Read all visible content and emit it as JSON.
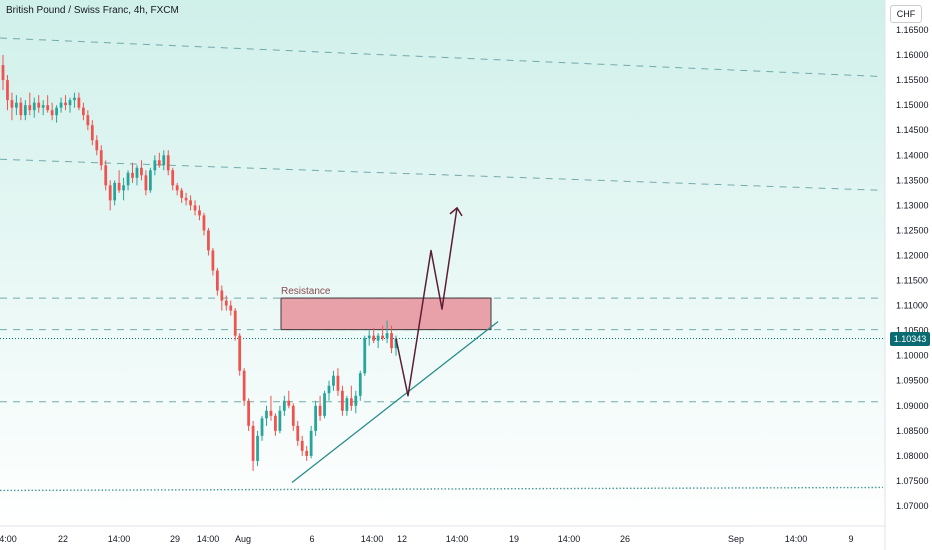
{
  "header": {
    "symbol_title": "British Pound / Swiss Franc, 4h, FXCM",
    "currency": "CHF",
    "last_price_label": "1.10343"
  },
  "chart_data": {
    "type": "candlestick",
    "title": "British Pound / Swiss Franc, 4h, FXCM",
    "y_axis": {
      "ticks": [
        "1.16500",
        "1.16000",
        "1.15500",
        "1.15000",
        "1.14500",
        "1.14000",
        "1.13500",
        "1.13000",
        "1.12500",
        "1.12000",
        "1.11500",
        "1.11000",
        "1.10500",
        "1.10000",
        "1.09500",
        "1.09000",
        "1.08500",
        "1.08000",
        "1.07500",
        "1.07000"
      ],
      "range": [
        1.0665,
        1.1695
      ]
    },
    "x_axis": {
      "ticks": [
        "4:00",
        "22",
        "14:00",
        "29",
        "14:00",
        "Aug",
        "6",
        "14:00",
        "12",
        "14:00",
        "19",
        "14:00",
        "26",
        "Sep",
        "14:00",
        "9"
      ]
    },
    "last_price": 1.10343,
    "annotations": {
      "resistance_label": "Resistance",
      "resistance_zone": [
        1.1052,
        1.1115
      ],
      "horizontal_levels": [
        1.0908,
        1.1052,
        1.1115
      ],
      "channel_lines": [
        {
          "from_price": 1.1634,
          "to_price": 1.1557
        },
        {
          "from_price": 1.1392,
          "to_price": 1.133
        },
        {
          "from_price": 1.0731,
          "to_price": 1.0737
        }
      ],
      "support_trendline": {
        "from_price": 1.0747,
        "to_price": 1.1068
      },
      "projected_path": [
        1.092,
        1.121,
        1.1093,
        1.1295
      ]
    },
    "candles": [
      [
        1.158,
        1.16,
        1.153,
        1.155
      ],
      [
        1.155,
        1.156,
        1.149,
        1.151
      ],
      [
        1.151,
        1.1525,
        1.147,
        1.1495
      ],
      [
        1.1495,
        1.152,
        1.148,
        1.1505
      ],
      [
        1.1505,
        1.1515,
        1.147,
        1.148
      ],
      [
        1.148,
        1.151,
        1.147,
        1.15
      ],
      [
        1.15,
        1.1525,
        1.148,
        1.149
      ],
      [
        1.149,
        1.1515,
        1.1475,
        1.1505
      ],
      [
        1.1505,
        1.152,
        1.1485,
        1.1495
      ],
      [
        1.1495,
        1.151,
        1.148,
        1.15
      ],
      [
        1.15,
        1.152,
        1.1485,
        1.149
      ],
      [
        1.149,
        1.1505,
        1.147,
        1.148
      ],
      [
        1.148,
        1.15,
        1.1465,
        1.1495
      ],
      [
        1.1495,
        1.1515,
        1.1485,
        1.1505
      ],
      [
        1.1505,
        1.152,
        1.149,
        1.15
      ],
      [
        1.15,
        1.1515,
        1.1485,
        1.151
      ],
      [
        1.151,
        1.1525,
        1.1495,
        1.1515
      ],
      [
        1.1515,
        1.1525,
        1.149,
        1.1495
      ],
      [
        1.1495,
        1.1505,
        1.147,
        1.148
      ],
      [
        1.148,
        1.149,
        1.145,
        1.146
      ],
      [
        1.146,
        1.147,
        1.142,
        1.143
      ],
      [
        1.143,
        1.144,
        1.14,
        1.141
      ],
      [
        1.141,
        1.142,
        1.137,
        1.138
      ],
      [
        1.138,
        1.139,
        1.133,
        1.134
      ],
      [
        1.134,
        1.135,
        1.129,
        1.131
      ],
      [
        1.131,
        1.135,
        1.13,
        1.1345
      ],
      [
        1.1345,
        1.137,
        1.1325,
        1.133
      ],
      [
        1.133,
        1.1355,
        1.131,
        1.134
      ],
      [
        1.134,
        1.137,
        1.133,
        1.1365
      ],
      [
        1.1365,
        1.1385,
        1.1345,
        1.1355
      ],
      [
        1.1355,
        1.138,
        1.134,
        1.1375
      ],
      [
        1.1375,
        1.139,
        1.135,
        1.136
      ],
      [
        1.136,
        1.137,
        1.132,
        1.133
      ],
      [
        1.133,
        1.1375,
        1.1325,
        1.137
      ],
      [
        1.137,
        1.14,
        1.136,
        1.139
      ],
      [
        1.139,
        1.1405,
        1.1375,
        1.138
      ],
      [
        1.138,
        1.141,
        1.137,
        1.14
      ],
      [
        1.14,
        1.141,
        1.136,
        1.137
      ],
      [
        1.137,
        1.1375,
        1.133,
        1.134
      ],
      [
        1.134,
        1.1345,
        1.132,
        1.133
      ],
      [
        1.133,
        1.1335,
        1.1305,
        1.1315
      ],
      [
        1.1315,
        1.1325,
        1.13,
        1.131
      ],
      [
        1.131,
        1.132,
        1.129,
        1.13
      ],
      [
        1.13,
        1.131,
        1.128,
        1.129
      ],
      [
        1.129,
        1.13,
        1.127,
        1.128
      ],
      [
        1.128,
        1.1285,
        1.124,
        1.125
      ],
      [
        1.125,
        1.1255,
        1.12,
        1.121
      ],
      [
        1.121,
        1.1215,
        1.116,
        1.117
      ],
      [
        1.117,
        1.1175,
        1.112,
        1.113
      ],
      [
        1.113,
        1.114,
        1.109,
        1.111
      ],
      [
        1.111,
        1.112,
        1.109,
        1.11
      ],
      [
        1.11,
        1.111,
        1.108,
        1.109
      ],
      [
        1.109,
        1.1095,
        1.103,
        1.104
      ],
      [
        1.104,
        1.1045,
        1.096,
        1.097
      ],
      [
        1.097,
        1.0975,
        1.09,
        1.091
      ],
      [
        1.091,
        1.0915,
        1.085,
        1.086
      ],
      [
        1.086,
        1.087,
        1.077,
        1.079
      ],
      [
        1.079,
        1.085,
        1.078,
        1.084
      ],
      [
        1.084,
        1.088,
        1.083,
        1.0875
      ],
      [
        1.0875,
        1.09,
        1.086,
        1.089
      ],
      [
        1.089,
        1.092,
        1.087,
        1.088
      ],
      [
        1.088,
        1.0885,
        1.084,
        1.085
      ],
      [
        1.085,
        1.09,
        1.0845,
        1.089
      ],
      [
        1.089,
        1.092,
        1.088,
        1.091
      ],
      [
        1.091,
        1.093,
        1.0895,
        1.09
      ],
      [
        1.09,
        1.0905,
        1.085,
        1.086
      ],
      [
        1.086,
        1.087,
        1.082,
        1.083
      ],
      [
        1.083,
        1.084,
        1.08,
        1.081
      ],
      [
        1.081,
        1.082,
        1.079,
        1.08
      ],
      [
        1.08,
        1.086,
        1.0795,
        1.085
      ],
      [
        1.085,
        1.091,
        1.084,
        1.09
      ],
      [
        1.09,
        1.092,
        1.087,
        1.088
      ],
      [
        1.088,
        1.093,
        1.0875,
        1.0925
      ],
      [
        1.0925,
        1.095,
        1.091,
        1.094
      ],
      [
        1.094,
        1.097,
        1.093,
        1.096
      ],
      [
        1.096,
        1.0975,
        1.092,
        1.093
      ],
      [
        1.093,
        1.094,
        1.088,
        1.089
      ],
      [
        1.089,
        1.092,
        1.088,
        1.0915
      ],
      [
        1.0915,
        1.094,
        1.089,
        1.09
      ],
      [
        1.09,
        1.093,
        1.0885,
        1.092
      ],
      [
        1.092,
        1.097,
        1.091,
        1.0965
      ],
      [
        1.0965,
        1.104,
        1.096,
        1.1035
      ],
      [
        1.1035,
        1.105,
        1.102,
        1.104
      ],
      [
        1.104,
        1.1055,
        1.1025,
        1.103
      ],
      [
        1.103,
        1.1045,
        1.1015,
        1.104
      ],
      [
        1.104,
        1.106,
        1.103,
        1.1035
      ],
      [
        1.1035,
        1.107,
        1.1025,
        1.1045
      ],
      [
        1.1045,
        1.106,
        1.1005,
        1.1015
      ],
      [
        1.1015,
        1.104,
        1.1,
        1.1034
      ]
    ]
  },
  "colors": {
    "up": "#26a69a",
    "down": "#ef5350",
    "gradient_top": "#d0f0ea",
    "gradient_bottom": "#ffffff",
    "channel_line": "#5f9ea0",
    "trendline": "#2a8c8c",
    "projection": "#5b1f35",
    "resistance_fill": "#e8a1a8",
    "resistance_border": "#3a3a3a",
    "price_tag": "#0b6b73",
    "axis_text": "#131722"
  }
}
